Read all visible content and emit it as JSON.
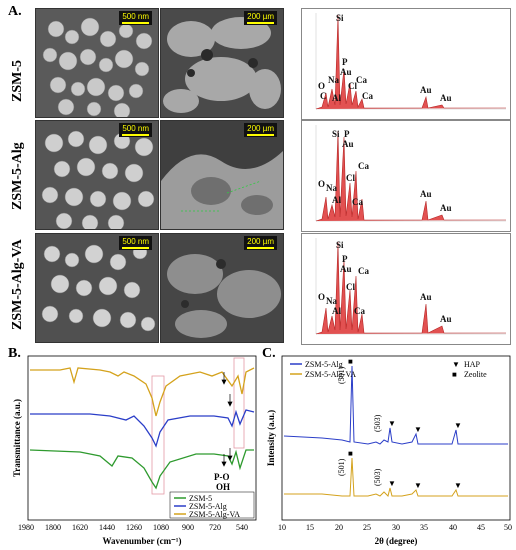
{
  "panels": {
    "a": "A.",
    "b": "B.",
    "c": "C."
  },
  "rows": [
    "ZSM-5",
    "ZSM-5-Alg",
    "ZSM-5-Alg-VA"
  ],
  "sem_scale": {
    "left": "500 nm",
    "right": "200 µm"
  },
  "eds": [
    {
      "labels": [
        "Si",
        "Na",
        "O",
        "C",
        "Al",
        "P",
        "Au",
        "Cl",
        "Ca",
        "Ca",
        "Au",
        "Au"
      ]
    },
    {
      "labels": [
        "Si",
        "P",
        "Au",
        "Na",
        "O",
        "Al",
        "Cl",
        "Ca",
        "Ca",
        "Au",
        "Au"
      ]
    },
    {
      "labels": [
        "Si",
        "P",
        "Au",
        "Na",
        "O",
        "Al",
        "Cl",
        "Ca",
        "Ca",
        "Au",
        "Au"
      ]
    }
  ],
  "ftir": {
    "xlabel": "Wavenumber (cm⁻¹)",
    "ylabel": "Transmittance (a.u.)",
    "xticks": [
      "1980",
      "1800",
      "1620",
      "1440",
      "1260",
      "1080",
      "900",
      "720",
      "540"
    ],
    "annot1": "P-O",
    "annot2": "OH",
    "legend": [
      {
        "name": "ZSM-5",
        "color": "#2e9a2e"
      },
      {
        "name": "ZSM-5-Alg",
        "color": "#2b3ec8"
      },
      {
        "name": "ZSM-5-Alg-VA",
        "color": "#d4a21c"
      }
    ]
  },
  "xrd": {
    "xlabel": "2θ (degree)",
    "ylabel": "Intensity (a.u.)",
    "xticks": [
      "10",
      "15",
      "20",
      "25",
      "30",
      "35",
      "40",
      "45",
      "50"
    ],
    "peak_labels": {
      "p501": "(501)",
      "p503": "(503)"
    },
    "legend": [
      {
        "name": "ZSM-5-Alg",
        "color": "#2b3ec8"
      },
      {
        "name": "ZSM-5-Alg-VA",
        "color": "#d4a21c"
      }
    ],
    "markers": [
      {
        "symbol": "▼",
        "name": "HAP",
        "color": "#8b4513"
      },
      {
        "symbol": "■",
        "name": "Zeolite",
        "color": "#000000"
      }
    ]
  }
}
